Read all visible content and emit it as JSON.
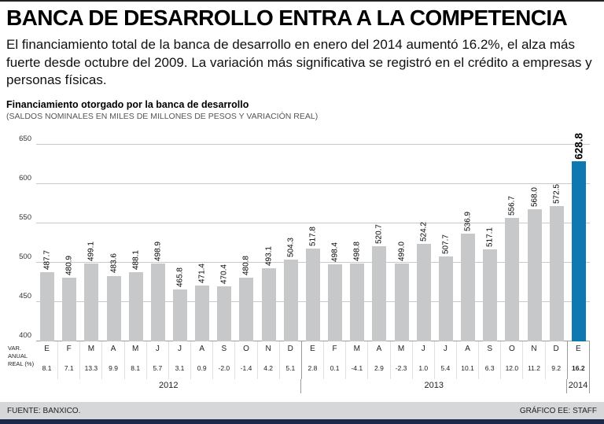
{
  "header": {
    "headline": "BANCA DE DESARROLLO ENTRA A LA COMPETENCIA",
    "intro": "El financiamiento total de la banca de desarrollo en enero del 2014 aumentó 16.2%, el alza más fuerte desde octubre del 2009. La variación más significativa se registró en el crédito a empresas y personas físicas."
  },
  "chart": {
    "title": "Financiamiento otorgado por la banca de desarrollo",
    "subtitle": "(SALDOS NOMINALES EN MILES DE MILLONES DE PESOS Y VARIACIÓN REAL)",
    "var_label_lines": [
      "VAR.",
      "ANUAL",
      "REAL (%)"
    ]
  },
  "footer": {
    "source": "FUENTE: BANXICO.",
    "credit": "GRÁFICO EE: STAFF"
  },
  "chart_data": {
    "type": "bar",
    "title": "Financiamiento otorgado por la banca de desarrollo",
    "subtitle": "(SALDOS NOMINALES EN MILES DE MILLONES DE PESOS Y VARIACIÓN REAL)",
    "ylabel": "Saldos nominales en miles de millones de pesos",
    "ylim": [
      400,
      650
    ],
    "yticks": [
      400,
      450,
      500,
      550,
      600,
      650
    ],
    "bar_color": "#c7c8c9",
    "highlight_color": "#0f78b0",
    "groups": [
      {
        "year": "2012",
        "count": 12
      },
      {
        "year": "2013",
        "count": 12
      },
      {
        "year": "2014",
        "count": 1
      }
    ],
    "points": [
      {
        "month": "E",
        "year": "2012",
        "value": 487.7,
        "label": "487.7",
        "var": "8.1"
      },
      {
        "month": "F",
        "year": "2012",
        "value": 480.9,
        "label": "480.9",
        "var": "7.1"
      },
      {
        "month": "M",
        "year": "2012",
        "value": 499.1,
        "label": "499.1",
        "var": "13.3"
      },
      {
        "month": "A",
        "year": "2012",
        "value": 483.6,
        "label": "483.6",
        "var": "9.9"
      },
      {
        "month": "M",
        "year": "2012",
        "value": 488.1,
        "label": "488.1",
        "var": "8.1"
      },
      {
        "month": "J",
        "year": "2012",
        "value": 498.9,
        "label": "498.9",
        "var": "5.7"
      },
      {
        "month": "J",
        "year": "2012",
        "value": 465.8,
        "label": "465.8",
        "var": "3.1"
      },
      {
        "month": "A",
        "year": "2012",
        "value": 471.4,
        "label": "471.4",
        "var": "0.9"
      },
      {
        "month": "S",
        "year": "2012",
        "value": 470.4,
        "label": "470.4",
        "var": "-2.0"
      },
      {
        "month": "O",
        "year": "2012",
        "value": 480.8,
        "label": "480.8",
        "var": "-1.4"
      },
      {
        "month": "N",
        "year": "2012",
        "value": 493.1,
        "label": "493.1",
        "var": "4.2"
      },
      {
        "month": "D",
        "year": "2012",
        "value": 504.3,
        "label": "504.3",
        "var": "5.1"
      },
      {
        "month": "E",
        "year": "2013",
        "value": 517.8,
        "label": "517.8",
        "var": "2.8"
      },
      {
        "month": "F",
        "year": "2013",
        "value": 498.4,
        "label": "498.4",
        "var": "0.1"
      },
      {
        "month": "M",
        "year": "2013",
        "value": 498.8,
        "label": "498.8",
        "var": "-4.1"
      },
      {
        "month": "A",
        "year": "2013",
        "value": 520.7,
        "label": "520.7",
        "var": "2.9"
      },
      {
        "month": "M",
        "year": "2013",
        "value": 499.0,
        "label": "499.0",
        "var": "-2.3"
      },
      {
        "month": "J",
        "year": "2013",
        "value": 524.2,
        "label": "524.2",
        "var": "1.0"
      },
      {
        "month": "J",
        "year": "2013",
        "value": 507.7,
        "label": "507.7",
        "var": "5.4"
      },
      {
        "month": "A",
        "year": "2013",
        "value": 536.9,
        "label": "536.9",
        "var": "10.1"
      },
      {
        "month": "S",
        "year": "2013",
        "value": 517.1,
        "label": "517.1",
        "var": "6.3"
      },
      {
        "month": "O",
        "year": "2013",
        "value": 556.7,
        "label": "556.7",
        "var": "12.0"
      },
      {
        "month": "N",
        "year": "2013",
        "value": 568.0,
        "label": "568.0",
        "var": "11.2"
      },
      {
        "month": "D",
        "year": "2013",
        "value": 572.5,
        "label": "572.5",
        "var": "9.2"
      },
      {
        "month": "E",
        "year": "2014",
        "value": 628.8,
        "label": "628.8",
        "var": "16.2",
        "highlight": true
      }
    ]
  }
}
